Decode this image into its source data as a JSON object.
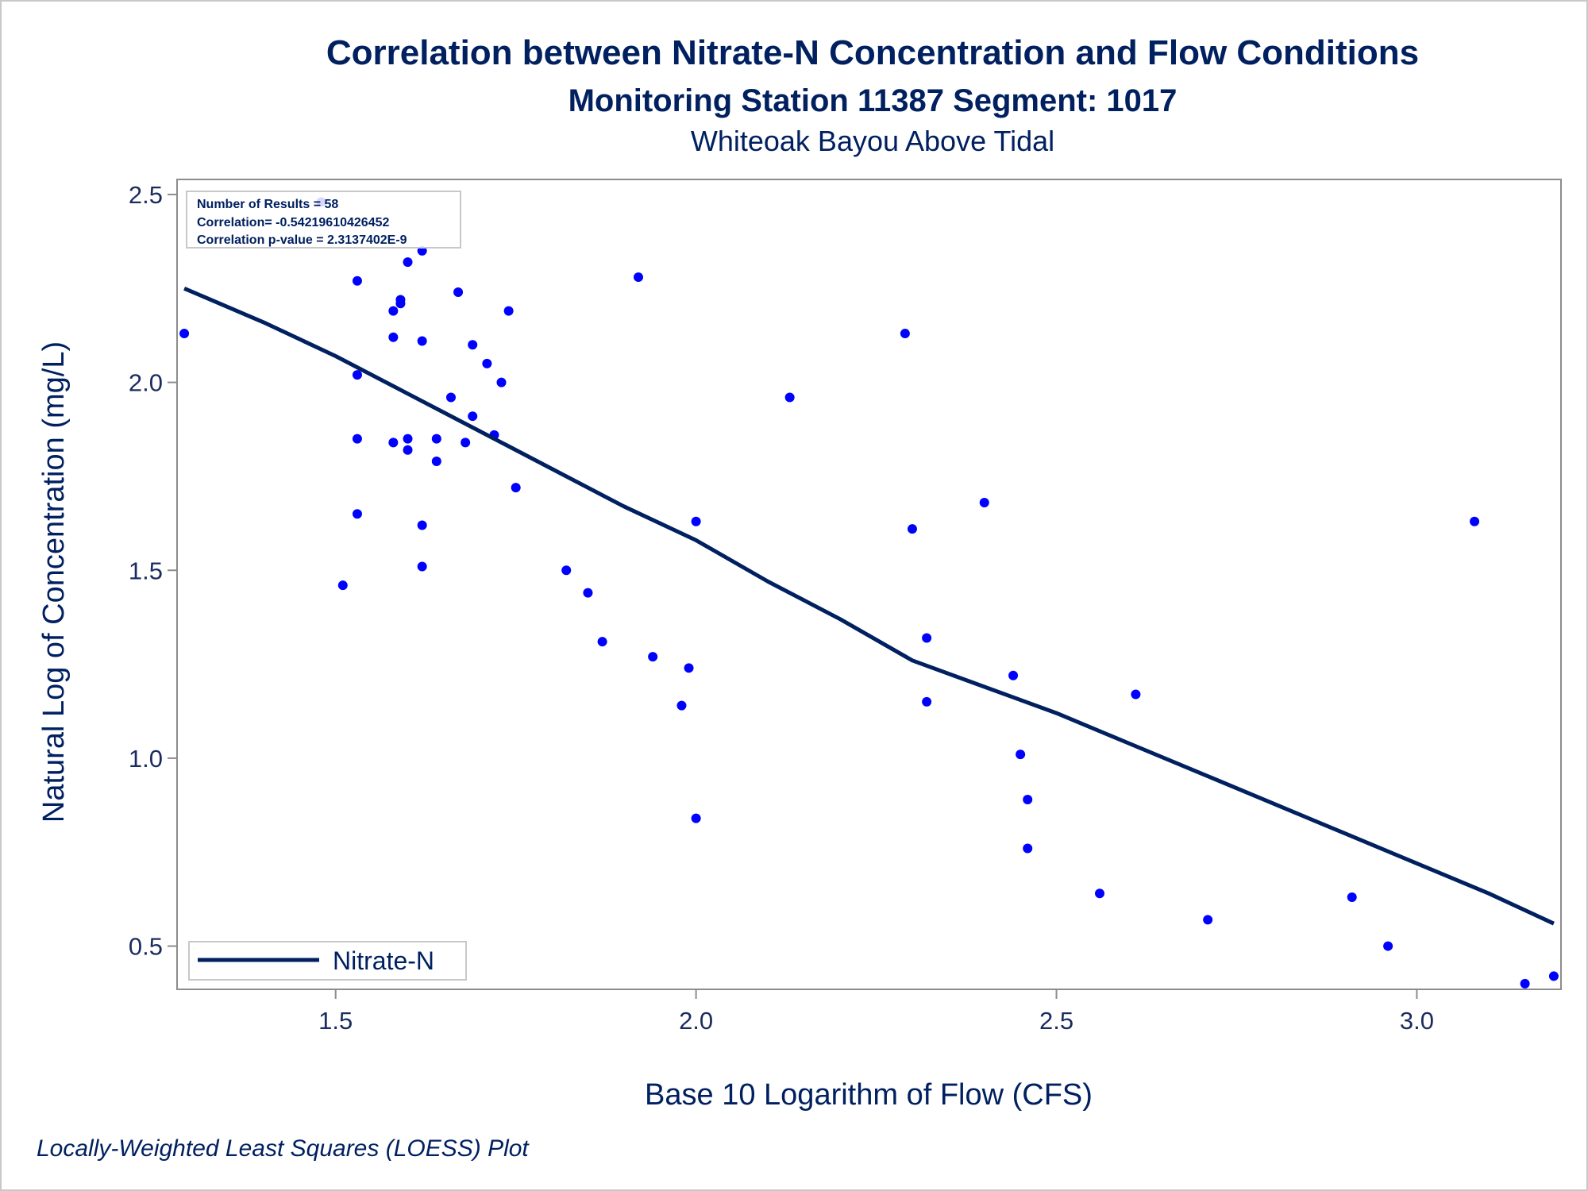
{
  "chart_data": {
    "type": "scatter",
    "title": "Correlation between Nitrate-N Concentration and Flow Conditions",
    "subtitle": "Monitoring Station 11387 Segment: 1017",
    "subtitle2": "Whiteoak Bayou Above Tidal",
    "xlabel": "Base 10 Logarithm of Flow (CFS)",
    "ylabel": "Natural Log of Concentration (mg/L)",
    "footnote": "Locally-Weighted Least Squares (LOESS) Plot",
    "xlim": [
      1.28,
      3.2
    ],
    "ylim": [
      0.385,
      2.54
    ],
    "x_ticks": [
      "1.5",
      "2.0",
      "2.5",
      "3.0"
    ],
    "y_ticks": [
      "0.5",
      "1.0",
      "1.5",
      "2.0",
      "2.5"
    ],
    "stats": [
      "Number of Results = 58",
      "Correlation= -0.54219610426452",
      "Correlation p-value = 2.3137402E-9"
    ],
    "legend": {
      "label": "Nitrate-N",
      "position": "bottom-left"
    },
    "colors": {
      "points": "#0000ff",
      "line": "#002060",
      "text": "#002060",
      "frame": "#8c8c8c"
    },
    "series": [
      {
        "kind": "scatter",
        "points": [
          [
            1.29,
            2.13
          ],
          [
            1.48,
            2.48
          ],
          [
            1.53,
            2.27
          ],
          [
            1.53,
            2.02
          ],
          [
            1.53,
            1.85
          ],
          [
            1.53,
            1.65
          ],
          [
            1.51,
            1.46
          ],
          [
            1.58,
            2.19
          ],
          [
            1.59,
            2.22
          ],
          [
            1.59,
            2.21
          ],
          [
            1.58,
            2.12
          ],
          [
            1.6,
            2.32
          ],
          [
            1.62,
            2.35
          ],
          [
            1.62,
            2.11
          ],
          [
            1.58,
            1.84
          ],
          [
            1.6,
            1.85
          ],
          [
            1.6,
            1.82
          ],
          [
            1.64,
            1.85
          ],
          [
            1.64,
            1.79
          ],
          [
            1.62,
            1.62
          ],
          [
            1.62,
            1.51
          ],
          [
            1.66,
            1.96
          ],
          [
            1.67,
            2.24
          ],
          [
            1.68,
            1.84
          ],
          [
            1.69,
            2.1
          ],
          [
            1.69,
            1.91
          ],
          [
            1.71,
            2.05
          ],
          [
            1.72,
            1.86
          ],
          [
            1.73,
            2.0
          ],
          [
            1.74,
            2.19
          ],
          [
            1.75,
            1.72
          ],
          [
            1.82,
            1.5
          ],
          [
            1.85,
            1.44
          ],
          [
            1.87,
            1.31
          ],
          [
            1.92,
            2.28
          ],
          [
            1.94,
            1.27
          ],
          [
            1.98,
            1.14
          ],
          [
            1.99,
            1.24
          ],
          [
            2.0,
            1.63
          ],
          [
            2.0,
            0.84
          ],
          [
            2.13,
            1.96
          ],
          [
            2.29,
            2.13
          ],
          [
            2.3,
            1.61
          ],
          [
            2.32,
            1.32
          ],
          [
            2.32,
            1.15
          ],
          [
            2.4,
            1.68
          ],
          [
            2.44,
            1.22
          ],
          [
            2.45,
            1.01
          ],
          [
            2.46,
            0.89
          ],
          [
            2.46,
            0.76
          ],
          [
            2.56,
            0.64
          ],
          [
            2.61,
            1.17
          ],
          [
            2.71,
            0.57
          ],
          [
            2.91,
            0.63
          ],
          [
            2.96,
            0.5
          ],
          [
            3.08,
            1.63
          ],
          [
            3.15,
            0.4
          ],
          [
            3.19,
            0.42
          ]
        ]
      },
      {
        "kind": "line",
        "name": "Nitrate-N",
        "points": [
          [
            1.29,
            2.25
          ],
          [
            1.4,
            2.16
          ],
          [
            1.5,
            2.07
          ],
          [
            1.6,
            1.97
          ],
          [
            1.7,
            1.87
          ],
          [
            1.8,
            1.77
          ],
          [
            1.9,
            1.67
          ],
          [
            2.0,
            1.58
          ],
          [
            2.1,
            1.47
          ],
          [
            2.2,
            1.37
          ],
          [
            2.3,
            1.26
          ],
          [
            2.4,
            1.19
          ],
          [
            2.5,
            1.12
          ],
          [
            2.6,
            1.04
          ],
          [
            2.7,
            0.96
          ],
          [
            2.8,
            0.88
          ],
          [
            2.9,
            0.8
          ],
          [
            3.0,
            0.72
          ],
          [
            3.1,
            0.64
          ],
          [
            3.19,
            0.56
          ]
        ]
      }
    ]
  }
}
